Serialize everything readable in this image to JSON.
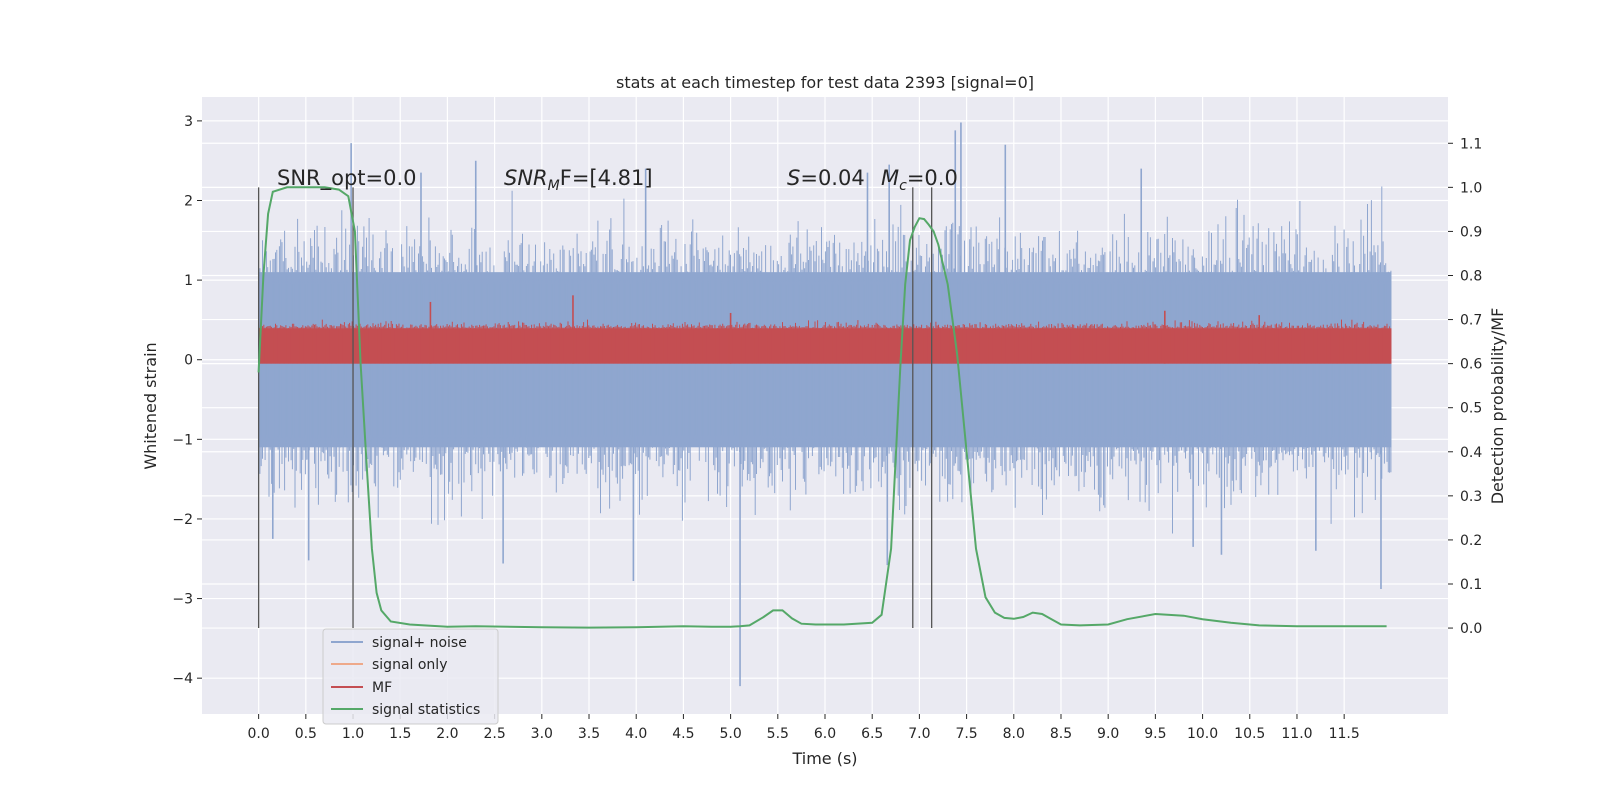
{
  "chart_data": {
    "type": "line",
    "title": "stats at each timestep for test data 2393 [signal=0]",
    "xlabel": "Time (s)",
    "ylabel": "Whitened strain",
    "y2label": "Detection probability/MF",
    "xlim": [
      -0.6,
      12.6
    ],
    "ylim": [
      -4.45,
      3.3
    ],
    "y2lim": [
      -0.195,
      1.205
    ],
    "x_ticks": [
      "0.0",
      "0.5",
      "1.0",
      "1.5",
      "2.0",
      "2.5",
      "3.0",
      "3.5",
      "4.0",
      "4.5",
      "5.0",
      "5.5",
      "6.0",
      "6.5",
      "7.0",
      "7.5",
      "8.0",
      "8.5",
      "9.0",
      "9.5",
      "10.0",
      "10.5",
      "11.0",
      "11.5"
    ],
    "y_ticks": [
      "3",
      "2",
      "1",
      "0",
      "−1",
      "−2",
      "−3",
      "−4"
    ],
    "y2_ticks": [
      "1.1",
      "1.0",
      "0.9",
      "0.8",
      "0.7",
      "0.6",
      "0.5",
      "0.4",
      "0.3",
      "0.2",
      "0.1",
      "0.0"
    ],
    "grid": true,
    "legend_position": "lower-left",
    "annotations": {
      "snr_opt": "SNR_opt=0.0",
      "snr_mf_main": "SNR",
      "snr_mf_sub": "M",
      "snr_mf_rest": "F=[4.81]",
      "s_italic": "S",
      "s_rest": "=0.04",
      "mc_italic": "M",
      "mc_sub": "c",
      "mc_rest": "=0.0"
    },
    "vertical_lines_x": [
      0.0,
      1.0,
      6.93,
      7.13
    ],
    "series": [
      {
        "name": "signal+ noise",
        "color": "#8fa6cf",
        "axis": "left",
        "x_range": [
          0.0,
          12.0
        ],
        "typical_upper": 1.1,
        "typical_lower": -1.1,
        "peaks": [
          {
            "x": 0.98,
            "y": 2.72
          },
          {
            "x": 7.44,
            "y": 2.98
          },
          {
            "x": 7.38,
            "y": 2.88
          },
          {
            "x": 7.91,
            "y": 2.7
          },
          {
            "x": 6.68,
            "y": 2.45
          },
          {
            "x": 6.45,
            "y": 2.35
          },
          {
            "x": 2.3,
            "y": 2.5
          },
          {
            "x": 4.1,
            "y": 2.4
          },
          {
            "x": 1.72,
            "y": 2.35
          },
          {
            "x": 9.35,
            "y": 2.4
          },
          {
            "x": 5.1,
            "y": -4.1
          },
          {
            "x": 11.89,
            "y": -2.88
          },
          {
            "x": 3.97,
            "y": -2.78
          },
          {
            "x": 0.53,
            "y": -2.52
          },
          {
            "x": 2.59,
            "y": -2.56
          },
          {
            "x": 6.66,
            "y": -2.58
          },
          {
            "x": 10.2,
            "y": -2.45
          },
          {
            "x": 11.2,
            "y": -2.4
          },
          {
            "x": 9.9,
            "y": -2.35
          },
          {
            "x": 0.15,
            "y": -2.25
          }
        ]
      },
      {
        "name": "signal only",
        "color": "#eea98a",
        "axis": "left",
        "x": [
          0.0,
          12.0
        ],
        "y": [
          0.0,
          0.0
        ]
      },
      {
        "name": "MF",
        "color": "#c44e52",
        "axis": "right",
        "x_range": [
          0.0,
          12.0
        ],
        "typical_upper": 0.68,
        "baseline": 0.6,
        "peaks": [
          {
            "x": 3.33,
            "y": 0.755
          },
          {
            "x": 1.82,
            "y": 0.74
          },
          {
            "x": 5.0,
            "y": 0.715
          },
          {
            "x": 9.6,
            "y": 0.72
          },
          {
            "x": 10.6,
            "y": 0.71
          }
        ]
      },
      {
        "name": "signal statistics",
        "color": "#55a868",
        "axis": "right",
        "x": [
          0.0,
          0.05,
          0.1,
          0.15,
          0.3,
          0.5,
          0.7,
          0.85,
          0.95,
          1.02,
          1.08,
          1.15,
          1.2,
          1.25,
          1.3,
          1.4,
          1.6,
          2.0,
          2.3,
          3.0,
          3.5,
          4.0,
          4.5,
          4.8,
          5.0,
          5.1,
          5.2,
          5.35,
          5.45,
          5.55,
          5.65,
          5.75,
          5.9,
          6.2,
          6.5,
          6.6,
          6.7,
          6.8,
          6.85,
          6.9,
          6.95,
          7.0,
          7.05,
          7.1,
          7.15,
          7.2,
          7.3,
          7.4,
          7.5,
          7.6,
          7.7,
          7.8,
          7.9,
          8.0,
          8.1,
          8.2,
          8.3,
          8.4,
          8.5,
          8.7,
          9.0,
          9.2,
          9.5,
          9.8,
          10.0,
          10.3,
          10.6,
          11.0,
          11.5,
          11.95
        ],
        "y": [
          0.58,
          0.8,
          0.94,
          0.99,
          1.0,
          1.0,
          1.0,
          0.995,
          0.98,
          0.9,
          0.6,
          0.35,
          0.18,
          0.08,
          0.04,
          0.015,
          0.008,
          0.003,
          0.004,
          0.002,
          0.001,
          0.002,
          0.004,
          0.003,
          0.003,
          0.004,
          0.006,
          0.025,
          0.04,
          0.04,
          0.022,
          0.01,
          0.008,
          0.008,
          0.012,
          0.03,
          0.18,
          0.6,
          0.78,
          0.88,
          0.91,
          0.93,
          0.928,
          0.915,
          0.9,
          0.87,
          0.78,
          0.62,
          0.4,
          0.18,
          0.07,
          0.035,
          0.023,
          0.021,
          0.025,
          0.035,
          0.032,
          0.02,
          0.008,
          0.006,
          0.008,
          0.02,
          0.032,
          0.028,
          0.02,
          0.012,
          0.006,
          0.004,
          0.004,
          0.004
        ]
      }
    ]
  }
}
